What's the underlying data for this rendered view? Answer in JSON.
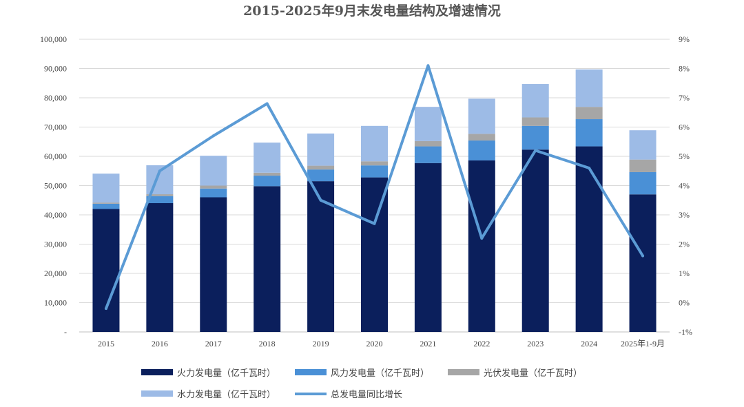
{
  "chart_data": {
    "type": "bar",
    "title": "2015-2025年9月末发电量结构及增速情况",
    "categories": [
      "2015",
      "2016",
      "2017",
      "2018",
      "2019",
      "2020",
      "2021",
      "2022",
      "2023",
      "2024",
      "2025年1-9月"
    ],
    "series": [
      {
        "name": "火力发电量（亿千瓦时）",
        "kind": "bar",
        "axis": "left",
        "color": "#0b1f5c",
        "values": [
          42000,
          44000,
          46000,
          49800,
          51500,
          52800,
          57700,
          58600,
          62300,
          63400,
          47000
        ]
      },
      {
        "name": "风力发电量（亿千瓦时）",
        "kind": "bar",
        "axis": "left",
        "color": "#4a90d6",
        "values": [
          1800,
          2400,
          3000,
          3600,
          4000,
          4100,
          5700,
          6800,
          8100,
          9300,
          7600
        ]
      },
      {
        "name": "光伏发电量（亿千瓦时）",
        "kind": "bar",
        "axis": "left",
        "color": "#a6a6a6",
        "values": [
          400,
          650,
          1000,
          1000,
          1300,
          1400,
          1800,
          2300,
          2900,
          4200,
          4300
        ]
      },
      {
        "name": "水力发电量（亿千瓦时）",
        "kind": "bar",
        "axis": "left",
        "color": "#9dbbe6",
        "values": [
          9900,
          9900,
          10200,
          10300,
          11000,
          12100,
          11700,
          12000,
          11400,
          12800,
          10000
        ]
      },
      {
        "name": "总发电量同比增长",
        "kind": "line",
        "axis": "right",
        "color": "#5b9bd5",
        "values": [
          -0.2,
          4.5,
          5.7,
          6.8,
          3.5,
          2.7,
          8.1,
          2.2,
          5.2,
          4.6,
          1.6
        ]
      }
    ],
    "left_axis": {
      "min": 0,
      "max": 100000,
      "step": 10000,
      "tick_labels": [
        "-",
        "10,000",
        "20,000",
        "30,000",
        "40,000",
        "50,000",
        "60,000",
        "70,000",
        "80,000",
        "90,000",
        "100,000"
      ]
    },
    "right_axis": {
      "min": -1,
      "max": 9,
      "step": 1,
      "tick_labels": [
        "-1%",
        "0%",
        "1%",
        "2%",
        "3%",
        "4%",
        "5%",
        "6%",
        "7%",
        "8%",
        "9%"
      ]
    },
    "grid": true,
    "legend_position": "bottom"
  }
}
